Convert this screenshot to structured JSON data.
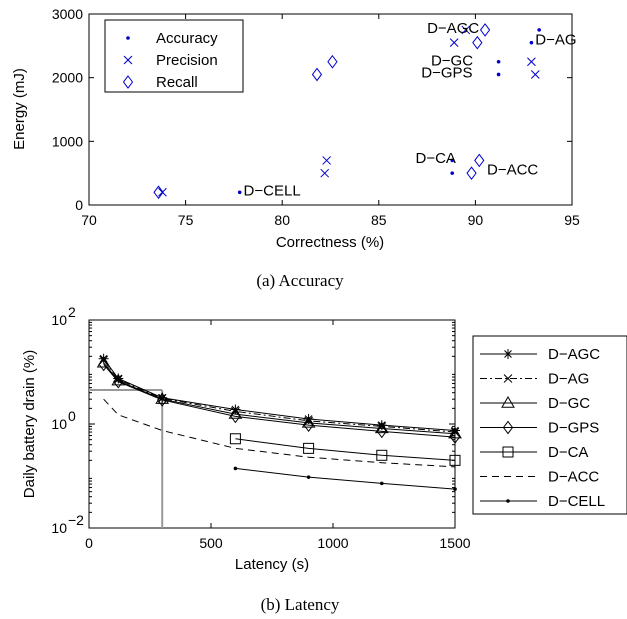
{
  "chart_data": [
    {
      "type": "scatter",
      "caption": "(a) Accuracy",
      "xlabel": "Correctness (%)",
      "ylabel": "Energy (mJ)",
      "xlim": [
        70,
        95
      ],
      "ylim": [
        0,
        3000
      ],
      "xticks": [
        "70",
        "75",
        "80",
        "85",
        "90",
        "95"
      ],
      "yticks": [
        "0",
        "1000",
        "2000",
        "3000"
      ],
      "legend_position": "top-left",
      "grid": false,
      "series": [
        {
          "name": "Accuracy",
          "marker": "dot",
          "color": "#0000cc",
          "points": [
            [
              93.3,
              2750
            ],
            [
              92.9,
              2550
            ],
            [
              91.2,
              2250
            ],
            [
              91.2,
              2050
            ],
            [
              88.8,
              700
            ],
            [
              88.8,
              500
            ],
            [
              77.8,
              200
            ]
          ]
        },
        {
          "name": "Precision",
          "marker": "x",
          "color": "#0000cc",
          "points": [
            [
              89.5,
              2750
            ],
            [
              88.9,
              2550
            ],
            [
              92.9,
              2250
            ],
            [
              93.1,
              2050
            ],
            [
              82.3,
              700
            ],
            [
              82.2,
              500
            ],
            [
              73.8,
              200
            ]
          ]
        },
        {
          "name": "Recall",
          "marker": "diamond",
          "color": "#0000cc",
          "points": [
            [
              90.5,
              2750
            ],
            [
              90.1,
              2550
            ],
            [
              82.6,
              2250
            ],
            [
              81.8,
              2050
            ],
            [
              90.2,
              700
            ],
            [
              89.8,
              500
            ],
            [
              73.6,
              200
            ]
          ]
        }
      ],
      "annotations": [
        {
          "text": "D−AGC",
          "x": 87.5,
          "y": 2700
        },
        {
          "text": "D−AG",
          "x": 93.1,
          "y": 2520
        },
        {
          "text": "D−GC",
          "x": 87.7,
          "y": 2190
        },
        {
          "text": "D−GPS",
          "x": 87.2,
          "y": 2000
        },
        {
          "text": "D−CA",
          "x": 86.9,
          "y": 660
        },
        {
          "text": "D−ACC",
          "x": 90.6,
          "y": 480
        },
        {
          "text": "D−CELL",
          "x": 78.0,
          "y": 150
        }
      ]
    },
    {
      "type": "line",
      "caption": "(b) Latency",
      "xlabel": "Latency (s)",
      "ylabel": "Daily battery drain (%)",
      "xlim": [
        0,
        1500
      ],
      "ylim_log": [
        -2,
        2
      ],
      "xticks": [
        "0",
        "500",
        "1000",
        "1500"
      ],
      "yticks": [
        {
          "base": "10",
          "exp": "−2",
          "value": -2
        },
        {
          "base": "10",
          "exp": "0",
          "value": 0
        },
        {
          "base": "10",
          "exp": "2",
          "value": 2
        }
      ],
      "legend_position": "outside-right",
      "grid": false,
      "reference_lines": [
        {
          "x": [
            0,
            300
          ],
          "y": [
            4.5,
            4.5
          ]
        },
        {
          "x": [
            300,
            300
          ],
          "y": [
            0.01,
            4.5
          ]
        }
      ],
      "series": [
        {
          "name": "D−AGC",
          "line": "solid",
          "marker": "star",
          "x": [
            60,
            120,
            300,
            600,
            900,
            1200,
            1500
          ],
          "y": [
            18,
            7.5,
            3.2,
            1.9,
            1.25,
            0.95,
            0.75
          ]
        },
        {
          "name": "D−AG",
          "line": "dashdot",
          "marker": "x",
          "x": [
            60,
            120,
            300,
            600,
            900,
            1200,
            1500
          ],
          "y": [
            17,
            7.2,
            3.1,
            1.75,
            1.15,
            0.9,
            0.7
          ]
        },
        {
          "name": "D−GC",
          "line": "solid",
          "marker": "triangle",
          "x": [
            60,
            120,
            300,
            600,
            900,
            1200,
            1500
          ],
          "y": [
            15,
            6.8,
            3.0,
            1.55,
            1.05,
            0.82,
            0.65
          ]
        },
        {
          "name": "D−GPS",
          "line": "solid",
          "marker": "diamond",
          "x": [
            60,
            120,
            300,
            600,
            900,
            1200,
            1500
          ],
          "y": [
            14,
            6.5,
            2.9,
            1.4,
            0.95,
            0.72,
            0.56
          ]
        },
        {
          "name": "D−CA",
          "line": "solid",
          "marker": "square",
          "x": [
            600,
            900,
            1200,
            1500
          ],
          "y": [
            0.52,
            0.34,
            0.25,
            0.2
          ]
        },
        {
          "name": "D−ACC",
          "line": "dashed",
          "marker": "none",
          "x": [
            60,
            120,
            300,
            600,
            900,
            1200,
            1500
          ],
          "y": [
            3.0,
            1.5,
            0.75,
            0.34,
            0.23,
            0.18,
            0.15
          ]
        },
        {
          "name": "D−CELL",
          "line": "solid",
          "marker": "dot",
          "x": [
            600,
            900,
            1200,
            1500
          ],
          "y": [
            0.14,
            0.095,
            0.072,
            0.056
          ]
        }
      ]
    }
  ]
}
